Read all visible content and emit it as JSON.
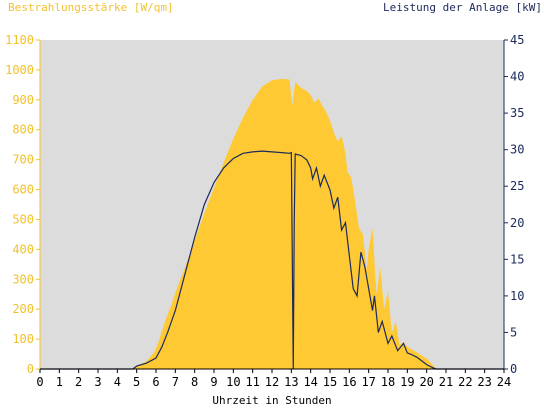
{
  "chart_data": {
    "type": "area",
    "left_axis_title": "Bestrahlungsstärke [W/qm]",
    "right_axis_title": "Leistung der Anlage [kW]",
    "xlabel": "Uhrzeit in Stunden",
    "xlim": [
      0,
      24
    ],
    "x_ticks": [
      "0",
      "1",
      "2",
      "3",
      "4",
      "5",
      "6",
      "7",
      "8",
      "9",
      "10",
      "11",
      "12",
      "13",
      "14",
      "15",
      "16",
      "17",
      "18",
      "19",
      "20",
      "21",
      "22",
      "23",
      "24"
    ],
    "y_left": {
      "lim": [
        0,
        1100
      ],
      "ticks": [
        "0",
        "100",
        "200",
        "300",
        "400",
        "500",
        "600",
        "700",
        "800",
        "900",
        "1000",
        "1100"
      ]
    },
    "y_right": {
      "lim": [
        0,
        45
      ],
      "ticks": [
        "0",
        "5",
        "10",
        "15",
        "20",
        "25",
        "30",
        "35",
        "40",
        "45"
      ]
    },
    "grid": false,
    "colors": {
      "irradiance": "#ffc933",
      "power": "#1a2a5c",
      "plot_bg": "#dcdcdc",
      "left_axis_text": "#f2c12e",
      "right_axis_text": "#1a2a5c"
    },
    "series": [
      {
        "name": "Bestrahlungsstärke",
        "axis": "left",
        "style": "area",
        "x": [
          0,
          4.8,
          5.0,
          5.5,
          5.9,
          6.1,
          6.3,
          6.5,
          6.8,
          7,
          7.5,
          8,
          8.5,
          9,
          9.5,
          10,
          10.5,
          11,
          11.5,
          12,
          12.5,
          12.9,
          13.05,
          13.2,
          13.5,
          13.8,
          14,
          14.2,
          14.4,
          14.6,
          14.8,
          15,
          15.2,
          15.4,
          15.6,
          15.8,
          15.9,
          16.1,
          16.3,
          16.5,
          16.7,
          16.9,
          17.0,
          17.2,
          17.4,
          17.6,
          17.8,
          18.0,
          18.2,
          18.4,
          18.6,
          18.8,
          19.0,
          19.5,
          20.0,
          20.3,
          20.5,
          24
        ],
        "y": [
          0,
          0,
          10,
          25,
          55,
          85,
          125,
          165,
          215,
          255,
          340,
          430,
          520,
          605,
          690,
          770,
          840,
          900,
          945,
          965,
          970,
          968,
          880,
          960,
          940,
          930,
          915,
          890,
          905,
          880,
          860,
          830,
          790,
          760,
          780,
          720,
          660,
          640,
          560,
          470,
          450,
          330,
          400,
          470,
          250,
          340,
          200,
          260,
          120,
          160,
          80,
          90,
          75,
          55,
          35,
          15,
          0,
          0
        ]
      },
      {
        "name": "Leistung der Anlage",
        "axis": "right",
        "style": "line",
        "x": [
          0,
          4.8,
          5.0,
          5.5,
          6.0,
          6.3,
          6.6,
          7,
          7.5,
          8,
          8.5,
          9,
          9.5,
          10,
          10.5,
          11,
          11.5,
          12,
          12.5,
          12.9,
          13.0,
          13.05,
          13.1,
          13.15,
          13.2,
          13.5,
          13.8,
          14.0,
          14.1,
          14.3,
          14.5,
          14.7,
          15.0,
          15.2,
          15.4,
          15.6,
          15.8,
          16.0,
          16.2,
          16.4,
          16.6,
          16.8,
          17.0,
          17.2,
          17.3,
          17.5,
          17.7,
          18.0,
          18.2,
          18.5,
          18.8,
          19.0,
          19.2,
          19.5,
          20.0,
          20.3,
          20.5,
          24
        ],
        "y": [
          0,
          0,
          0.4,
          0.8,
          1.5,
          3,
          5,
          8,
          13,
          18,
          22.5,
          25.5,
          27.5,
          28.8,
          29.5,
          29.7,
          29.8,
          29.7,
          29.6,
          29.5,
          29.6,
          15,
          0,
          20,
          29.4,
          29.2,
          28.6,
          27.5,
          26,
          27.5,
          25,
          26.5,
          24.5,
          22,
          23.5,
          19,
          20,
          15.5,
          11,
          10,
          16,
          14,
          11,
          8,
          10,
          5,
          6.5,
          3.5,
          4.5,
          2.5,
          3.5,
          2.2,
          2,
          1.6,
          0.6,
          0.2,
          0,
          0
        ]
      }
    ]
  }
}
